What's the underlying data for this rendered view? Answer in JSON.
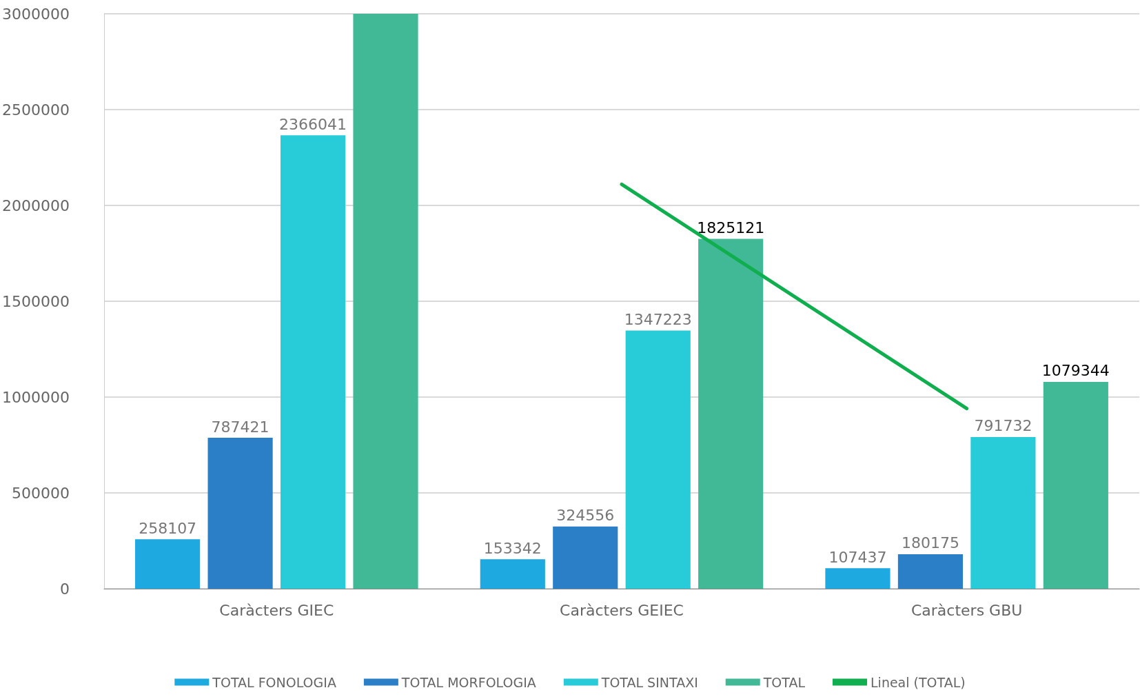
{
  "chart_data": {
    "type": "bar",
    "categories": [
      "Caràcters GIEC",
      "Caràcters GEIEC",
      "Caràcters GBU"
    ],
    "series": [
      {
        "name": "TOTAL FONOLOGIA",
        "color": "#1ea9e1",
        "values": [
          258107,
          153342,
          107437
        ],
        "value_labels": [
          "258107",
          "153342",
          "107437"
        ]
      },
      {
        "name": "TOTAL MORFOLOGIA",
        "color": "#2a7fc6",
        "values": [
          787421,
          324556,
          180175
        ],
        "value_labels": [
          "787421",
          "324556",
          "180175"
        ]
      },
      {
        "name": "TOTAL SINTAXI",
        "color": "#28ccd8",
        "values": [
          2366041,
          1347223,
          791732
        ],
        "value_labels": [
          "2366041",
          "1347223",
          "791732"
        ]
      },
      {
        "name": "TOTAL",
        "color": "#42b996",
        "values": [
          3000000,
          1825121,
          1079344
        ],
        "value_labels": [
          null,
          "1825121",
          "1079344"
        ]
      },
      {
        "name": "Lineal (TOTAL)",
        "type": "line",
        "color": "#10ae4e",
        "values": [
          null,
          2110000,
          940000
        ],
        "marker": "none",
        "line_style": "solid"
      }
    ],
    "ylim": [
      0,
      3000000
    ],
    "yticks": [
      0,
      500000,
      1000000,
      1500000,
      2000000,
      2500000,
      3000000
    ],
    "grid": "y",
    "legend": "bottom"
  }
}
